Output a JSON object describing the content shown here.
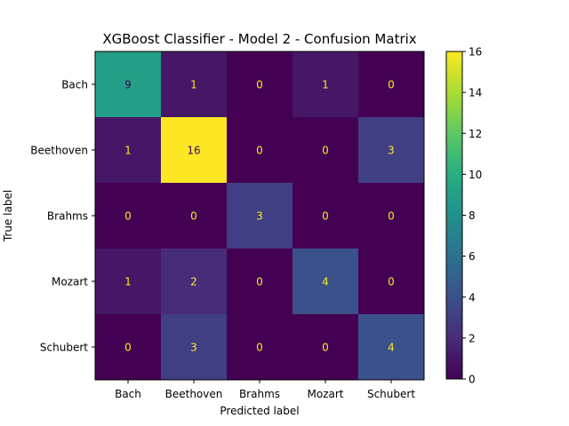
{
  "chart_data": {
    "type": "heatmap",
    "title": "XGBoost Classifier - Model 2 - Confusion Matrix",
    "xlabel": "Predicted label",
    "ylabel": "True label",
    "x_categories": [
      "Bach",
      "Beethoven",
      "Brahms",
      "Mozart",
      "Schubert"
    ],
    "y_categories": [
      "Bach",
      "Beethoven",
      "Brahms",
      "Mozart",
      "Schubert"
    ],
    "matrix": [
      [
        9,
        1,
        0,
        1,
        0
      ],
      [
        1,
        16,
        0,
        0,
        3
      ],
      [
        0,
        0,
        3,
        0,
        0
      ],
      [
        1,
        2,
        0,
        4,
        0
      ],
      [
        0,
        3,
        0,
        0,
        4
      ]
    ],
    "colorbar": {
      "colormap": "viridis",
      "range": [
        0,
        16
      ],
      "ticks": [
        0,
        2,
        4,
        6,
        8,
        10,
        12,
        14,
        16
      ]
    },
    "label_colors": {
      "on_dark": "#fde725",
      "on_light": "#440154"
    }
  }
}
